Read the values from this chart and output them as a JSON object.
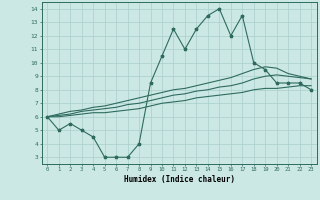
{
  "xlabel": "Humidex (Indice chaleur)",
  "x_values": [
    0,
    1,
    2,
    3,
    4,
    5,
    6,
    7,
    8,
    9,
    10,
    11,
    12,
    13,
    14,
    15,
    16,
    17,
    18,
    19,
    20,
    21,
    22,
    23
  ],
  "line1_y": [
    6.0,
    5.0,
    5.5,
    5.0,
    4.5,
    3.0,
    3.0,
    3.0,
    4.0,
    8.5,
    10.5,
    12.5,
    11.0,
    12.5,
    13.5,
    14.0,
    12.0,
    13.5,
    10.0,
    9.5,
    8.5,
    8.5,
    8.5,
    8.0
  ],
  "line2_y": [
    6.0,
    6.0,
    6.1,
    6.2,
    6.3,
    6.3,
    6.4,
    6.5,
    6.6,
    6.8,
    7.0,
    7.1,
    7.2,
    7.4,
    7.5,
    7.6,
    7.7,
    7.8,
    8.0,
    8.1,
    8.1,
    8.2,
    8.3,
    8.3
  ],
  "line3_y": [
    6.0,
    6.1,
    6.2,
    6.4,
    6.5,
    6.6,
    6.7,
    6.9,
    7.0,
    7.2,
    7.4,
    7.6,
    7.7,
    7.9,
    8.0,
    8.2,
    8.3,
    8.5,
    8.8,
    9.0,
    9.1,
    9.0,
    8.9,
    8.8
  ],
  "line4_y": [
    6.0,
    6.2,
    6.4,
    6.5,
    6.7,
    6.8,
    7.0,
    7.2,
    7.4,
    7.6,
    7.8,
    8.0,
    8.1,
    8.3,
    8.5,
    8.7,
    8.9,
    9.2,
    9.5,
    9.7,
    9.6,
    9.2,
    9.0,
    8.8
  ],
  "line_color": "#2e6b5e",
  "bg_color": "#cce8e4",
  "grid_color": "#aacfcc",
  "ylim": [
    2.5,
    14.5
  ],
  "xlim": [
    -0.5,
    23.5
  ],
  "yticks": [
    3,
    4,
    5,
    6,
    7,
    8,
    9,
    10,
    11,
    12,
    13,
    14
  ],
  "xticks": [
    0,
    1,
    2,
    3,
    4,
    5,
    6,
    7,
    8,
    9,
    10,
    11,
    12,
    13,
    14,
    15,
    16,
    17,
    18,
    19,
    20,
    21,
    22,
    23
  ]
}
